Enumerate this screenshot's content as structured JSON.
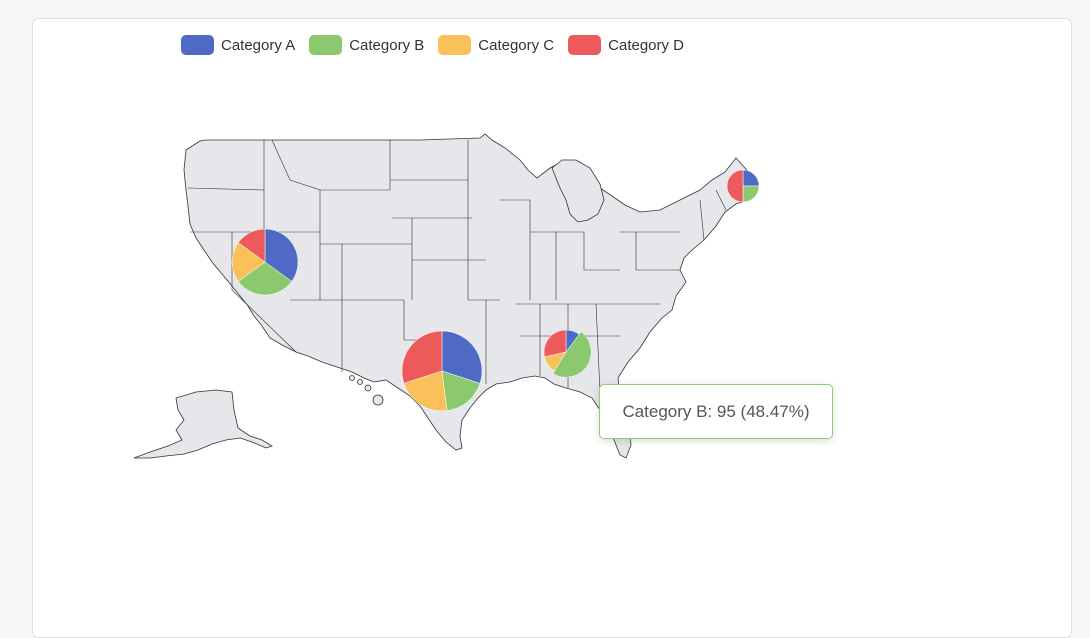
{
  "legend": {
    "items": [
      {
        "label": "Category A",
        "color": "#4f6ac4"
      },
      {
        "label": "Category B",
        "color": "#8cc96e"
      },
      {
        "label": "Category C",
        "color": "#fac15a"
      },
      {
        "label": "Category D",
        "color": "#ec5a5b"
      }
    ]
  },
  "map": {
    "region": "United States",
    "fill": "#e6e7ea",
    "stroke": "#333333"
  },
  "chart_data": {
    "type": "pie",
    "categories": [
      "Category A",
      "Category B",
      "Category C",
      "Category D"
    ],
    "colors": [
      "#4f6ac4",
      "#8cc96e",
      "#fac15a",
      "#ec5a5b"
    ],
    "pies": [
      {
        "location": "Nevada",
        "values": [
          35,
          30,
          20,
          15
        ]
      },
      {
        "location": "Texas",
        "values": [
          30,
          18,
          22,
          30
        ]
      },
      {
        "location": "Georgia",
        "values": [
          20,
          95,
          25,
          56
        ]
      },
      {
        "location": "Maine",
        "values": [
          25,
          25,
          0,
          50
        ]
      }
    ]
  },
  "tooltip": {
    "text": "Category B: 95 (48.47%)"
  }
}
